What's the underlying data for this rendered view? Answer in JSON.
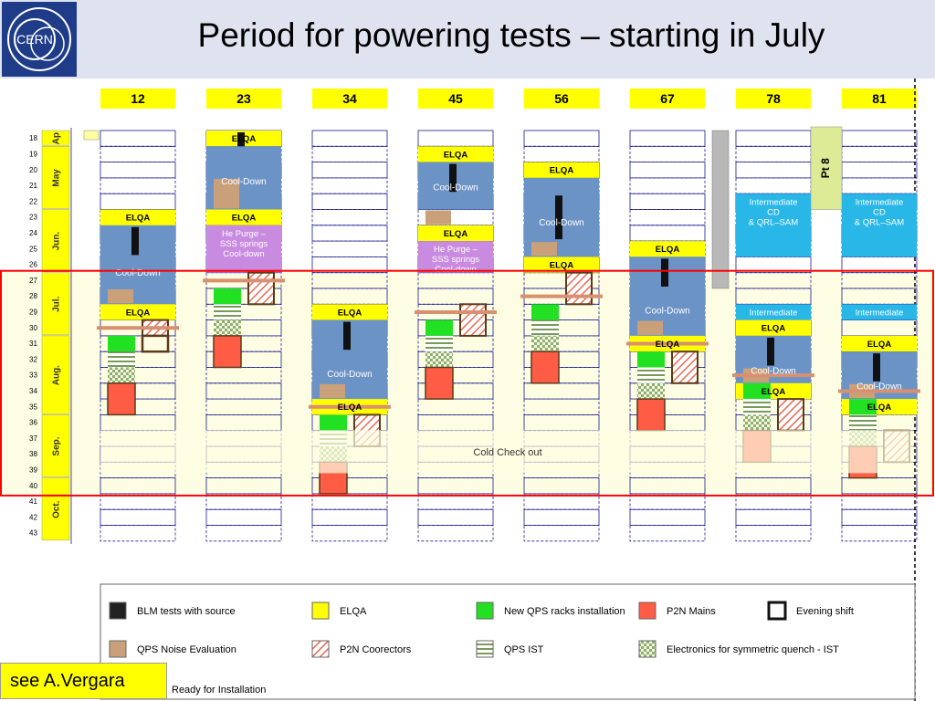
{
  "title": "Period for powering tests – starting in July",
  "logo_text": "CERN",
  "footer_note": "see A.Vergara",
  "colors": {
    "header_bg": "#dfe3ef",
    "elqa": "#ffff00",
    "cooldown": "#6b93c6",
    "cooldown_late": "#8fb0c4",
    "qps_noise": "#c9a07a",
    "he_purge": "#c98be0",
    "intermediate": "#29b7e8",
    "new_qps": "#22e022",
    "p2n_mains": "#ff5c45",
    "highlight": "#ff0000",
    "band": "#fdfde3"
  },
  "chart_data": {
    "type": "gantt",
    "sectors": [
      "12",
      "23",
      "34",
      "45",
      "56",
      "67",
      "78",
      "81"
    ],
    "week_start": 18,
    "week_end": 43,
    "months": [
      {
        "label": "Ap",
        "from": 18,
        "to": 18
      },
      {
        "label": "May",
        "from": 19,
        "to": 22
      },
      {
        "label": "Jun.",
        "from": 23,
        "to": 26
      },
      {
        "label": "Jul.",
        "from": 27,
        "to": 30
      },
      {
        "label": "Aug.",
        "from": 31,
        "to": 35
      },
      {
        "label": "Sep.",
        "from": 36,
        "to": 39
      },
      {
        "label": "Oct.",
        "from": 40,
        "to": 43
      }
    ],
    "highlight_weeks": [
      27,
      40
    ],
    "cold_checkout": {
      "label": "Cold Check out",
      "from": 37,
      "to": 39
    },
    "pt8": {
      "label": "Pt 8",
      "from": 18,
      "to": 22
    },
    "cold_checkout_boundaries": {
      "34": 35.5,
      "12": 30.5,
      "23": 27.5,
      "45": 29.5,
      "56": 28.5,
      "67": 31.5,
      "78": 33.5,
      "81": 34.5
    },
    "activities": [
      {
        "sector": "12",
        "type": "cooldown",
        "label": "Cool-Down",
        "from": 23,
        "to": 29
      },
      {
        "sector": "12",
        "type": "elqa",
        "label": "ELQA",
        "from": 23,
        "to": 23
      },
      {
        "sector": "12",
        "type": "blm",
        "label": "",
        "from": 24,
        "to": 25
      },
      {
        "sector": "12",
        "type": "qps_noise",
        "label": "",
        "from": 28,
        "to": 28
      },
      {
        "sector": "12",
        "type": "elqa",
        "label": "ELQA",
        "from": 29,
        "to": 29
      },
      {
        "sector": "12",
        "type": "new_qps",
        "label": "",
        "from": 31,
        "to": 31
      },
      {
        "sector": "12",
        "type": "qps_ist",
        "label": "",
        "from": 32,
        "to": 32
      },
      {
        "sector": "12",
        "type": "electronics",
        "label": "",
        "from": 33,
        "to": 33
      },
      {
        "sector": "12",
        "type": "p2n_mains",
        "label": "",
        "from": 34,
        "to": 35
      },
      {
        "sector": "12",
        "type": "p2n_corr",
        "label": "",
        "from": 30,
        "to": 30
      },
      {
        "sector": "12",
        "type": "evening",
        "label": "",
        "from": 31,
        "to": 31
      },
      {
        "sector": "23",
        "type": "elqa",
        "label": "ELQA",
        "from": 18,
        "to": 18
      },
      {
        "sector": "23",
        "type": "blm",
        "label": "",
        "from": 18,
        "to": 19
      },
      {
        "sector": "23",
        "type": "cooldown",
        "label": "Cool-Down",
        "from": 19,
        "to": 22
      },
      {
        "sector": "23",
        "type": "qps_noise",
        "label": "",
        "from": 21,
        "to": 22
      },
      {
        "sector": "23",
        "type": "elqa",
        "label": "ELQA",
        "from": 23,
        "to": 23
      },
      {
        "sector": "23",
        "type": "he_purge",
        "label": "He Purge – SSS springs Cool-down",
        "from": 24,
        "to": 26
      },
      {
        "sector": "23",
        "type": "new_qps",
        "label": "",
        "from": 28,
        "to": 28
      },
      {
        "sector": "23",
        "type": "qps_ist",
        "label": "",
        "from": 29,
        "to": 29
      },
      {
        "sector": "23",
        "type": "electronics",
        "label": "",
        "from": 30,
        "to": 30
      },
      {
        "sector": "23",
        "type": "p2n_mains",
        "label": "",
        "from": 31,
        "to": 32
      },
      {
        "sector": "23",
        "type": "p2n_corr",
        "label": "",
        "from": 27,
        "to": 28
      },
      {
        "sector": "34",
        "type": "elqa",
        "label": "ELQA",
        "from": 29,
        "to": 29
      },
      {
        "sector": "34",
        "type": "cooldown",
        "label": "Cool-Down",
        "from": 30,
        "to": 35
      },
      {
        "sector": "34",
        "type": "blm",
        "label": "",
        "from": 30,
        "to": 31
      },
      {
        "sector": "34",
        "type": "qps_noise",
        "label": "",
        "from": 34,
        "to": 34
      },
      {
        "sector": "34",
        "type": "elqa",
        "label": "ELQA",
        "from": 35,
        "to": 35
      },
      {
        "sector": "34",
        "type": "new_qps",
        "label": "",
        "from": 36,
        "to": 36
      },
      {
        "sector": "34",
        "type": "qps_ist",
        "label": "",
        "from": 37,
        "to": 37
      },
      {
        "sector": "34",
        "type": "electronics",
        "label": "",
        "from": 38,
        "to": 38
      },
      {
        "sector": "34",
        "type": "p2n_mains",
        "label": "",
        "from": 39,
        "to": 40
      },
      {
        "sector": "34",
        "type": "p2n_corr",
        "label": "",
        "from": 36,
        "to": 37
      },
      {
        "sector": "45",
        "type": "elqa",
        "label": "ELQA",
        "from": 19,
        "to": 19
      },
      {
        "sector": "45",
        "type": "cooldown",
        "label": "Cool-Down",
        "from": 20,
        "to": 22
      },
      {
        "sector": "45",
        "type": "blm",
        "label": "",
        "from": 20,
        "to": 21
      },
      {
        "sector": "45",
        "type": "qps_noise",
        "label": "",
        "from": 23,
        "to": 23
      },
      {
        "sector": "45",
        "type": "elqa",
        "label": "ELQA",
        "from": 24,
        "to": 24
      },
      {
        "sector": "45",
        "type": "he_purge",
        "label": "He Purge – SSS springs Cool-down",
        "from": 25,
        "to": 26
      },
      {
        "sector": "45",
        "type": "new_qps",
        "label": "",
        "from": 30,
        "to": 30
      },
      {
        "sector": "45",
        "type": "qps_ist",
        "label": "",
        "from": 31,
        "to": 31
      },
      {
        "sector": "45",
        "type": "electronics",
        "label": "",
        "from": 32,
        "to": 32
      },
      {
        "sector": "45",
        "type": "p2n_mains",
        "label": "",
        "from": 33,
        "to": 34
      },
      {
        "sector": "45",
        "type": "p2n_corr",
        "label": "",
        "from": 29,
        "to": 30
      },
      {
        "sector": "56",
        "type": "elqa",
        "label": "ELQA",
        "from": 20,
        "to": 20
      },
      {
        "sector": "56",
        "type": "cooldown",
        "label": "Cool-Down",
        "from": 21,
        "to": 25
      },
      {
        "sector": "56",
        "type": "blm",
        "label": "",
        "from": 22,
        "to": 24
      },
      {
        "sector": "56",
        "type": "qps_noise",
        "label": "",
        "from": 25,
        "to": 25
      },
      {
        "sector": "56",
        "type": "elqa",
        "label": "ELQA",
        "from": 26,
        "to": 26
      },
      {
        "sector": "56",
        "type": "new_qps",
        "label": "",
        "from": 29,
        "to": 29
      },
      {
        "sector": "56",
        "type": "qps_ist",
        "label": "",
        "from": 30,
        "to": 30
      },
      {
        "sector": "56",
        "type": "electronics",
        "label": "",
        "from": 31,
        "to": 31
      },
      {
        "sector": "56",
        "type": "p2n_mains",
        "label": "",
        "from": 32,
        "to": 33
      },
      {
        "sector": "56",
        "type": "p2n_corr",
        "label": "",
        "from": 27,
        "to": 28
      },
      {
        "sector": "67",
        "type": "elqa",
        "label": "ELQA",
        "from": 25,
        "to": 25
      },
      {
        "sector": "67",
        "type": "cooldown",
        "label": "Cool-Down",
        "from": 26,
        "to": 31
      },
      {
        "sector": "67",
        "type": "blm",
        "label": "",
        "from": 26,
        "to": 27
      },
      {
        "sector": "67",
        "type": "qps_noise",
        "label": "",
        "from": 30,
        "to": 30
      },
      {
        "sector": "67",
        "type": "elqa",
        "label": "ELQA",
        "from": 31,
        "to": 31
      },
      {
        "sector": "67",
        "type": "new_qps",
        "label": "",
        "from": 32,
        "to": 32
      },
      {
        "sector": "67",
        "type": "qps_ist",
        "label": "",
        "from": 33,
        "to": 33
      },
      {
        "sector": "67",
        "type": "electronics",
        "label": "",
        "from": 34,
        "to": 34
      },
      {
        "sector": "67",
        "type": "p2n_mains",
        "label": "",
        "from": 35,
        "to": 36
      },
      {
        "sector": "67",
        "type": "p2n_corr",
        "label": "",
        "from": 32,
        "to": 33
      },
      {
        "sector": "78",
        "type": "intermediate",
        "label": "Intermediate CD & QRL–SAM",
        "from": 22,
        "to": 25
      },
      {
        "sector": "78",
        "type": "intermediate",
        "label": "Intermediate",
        "from": 29,
        "to": 29
      },
      {
        "sector": "78",
        "type": "elqa",
        "label": "ELQA",
        "from": 30,
        "to": 30
      },
      {
        "sector": "78",
        "type": "cooldown",
        "label": "Cool-Down",
        "from": 31,
        "to": 34
      },
      {
        "sector": "78",
        "type": "blm",
        "label": "",
        "from": 31,
        "to": 32
      },
      {
        "sector": "78",
        "type": "qps_noise",
        "label": "",
        "from": 33,
        "to": 33
      },
      {
        "sector": "78",
        "type": "elqa",
        "label": "ELQA",
        "from": 34,
        "to": 34
      },
      {
        "sector": "78",
        "type": "new_qps",
        "label": "",
        "from": 34,
        "to": 34
      },
      {
        "sector": "78",
        "type": "qps_ist",
        "label": "",
        "from": 35,
        "to": 35
      },
      {
        "sector": "78",
        "type": "electronics",
        "label": "",
        "from": 36,
        "to": 36
      },
      {
        "sector": "78",
        "type": "p2n_mains",
        "label": "",
        "from": 37,
        "to": 38
      },
      {
        "sector": "78",
        "type": "p2n_corr",
        "label": "",
        "from": 35,
        "to": 36
      },
      {
        "sector": "81",
        "type": "intermediate",
        "label": "Intermediate CD & QRL–SAM",
        "from": 22,
        "to": 25
      },
      {
        "sector": "81",
        "type": "intermediate",
        "label": "Intermediate",
        "from": 29,
        "to": 29
      },
      {
        "sector": "81",
        "type": "elqa",
        "label": "ELQA",
        "from": 31,
        "to": 31
      },
      {
        "sector": "81",
        "type": "cooldown",
        "label": "Cool-Down",
        "from": 32,
        "to": 35
      },
      {
        "sector": "81",
        "type": "blm",
        "label": "",
        "from": 32,
        "to": 33
      },
      {
        "sector": "81",
        "type": "qps_noise",
        "label": "",
        "from": 34,
        "to": 34
      },
      {
        "sector": "81",
        "type": "elqa",
        "label": "ELQA",
        "from": 35,
        "to": 35
      },
      {
        "sector": "81",
        "type": "new_qps",
        "label": "",
        "from": 35,
        "to": 35
      },
      {
        "sector": "81",
        "type": "qps_ist",
        "label": "",
        "from": 36,
        "to": 36
      },
      {
        "sector": "81",
        "type": "electronics",
        "label": "",
        "from": 37,
        "to": 37
      },
      {
        "sector": "81",
        "type": "p2n_mains",
        "label": "",
        "from": 38,
        "to": 39
      },
      {
        "sector": "81",
        "type": "p2n_corr",
        "label": "",
        "from": 37,
        "to": 38
      }
    ],
    "legend": [
      {
        "key": "blm",
        "label": "BLM tests with source"
      },
      {
        "key": "elqa",
        "label": "ELQA"
      },
      {
        "key": "new_qps",
        "label": "New QPS racks installation"
      },
      {
        "key": "p2n_mains",
        "label": "P2N Mains"
      },
      {
        "key": "evening",
        "label": "Evening shift"
      },
      {
        "key": "qps_noise",
        "label": "QPS Noise Evaluation"
      },
      {
        "key": "p2n_corr",
        "label": "P2N Coorectors"
      },
      {
        "key": "qps_ist",
        "label": "QPS IST"
      },
      {
        "key": "electronics",
        "label": "Electronics for symmetric quench - IST"
      },
      {
        "key": "ready",
        "label": "Ready for Installation"
      }
    ]
  }
}
